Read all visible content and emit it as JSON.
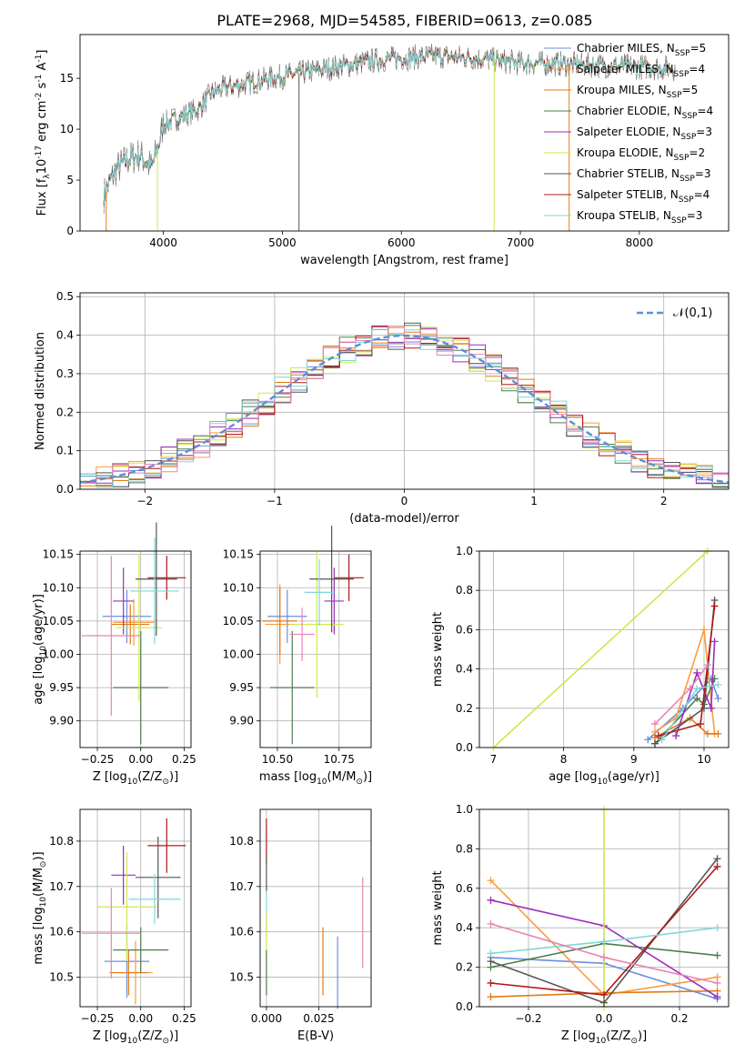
{
  "title": "PLATE=2968, MJD=54585, FIBERID=0613, z=0.085",
  "colors": {
    "c1": "#6a8fe0",
    "c2": "#ff9a3c",
    "c3": "#e27b16",
    "c4": "#4e7e4e",
    "c5": "#9b2dbb",
    "c6": "#cfe84a",
    "c7": "#555555",
    "c8": "#b01818",
    "c9": "#7fd8d8",
    "c10": "#e884b4"
  },
  "chart_data": [
    {
      "id": "spectrum",
      "type": "line",
      "xlabel": "wavelength [Angstrom, rest frame]",
      "ylabel": "Flux [f$_\\lambda$10$^{-17}$ erg cm$^{-2}$ s$^{-1}$ A$^{-1}$]",
      "xticks": [
        "4000",
        "5000",
        "6000",
        "7000",
        "8000"
      ],
      "yticks": [
        "0",
        "5",
        "10",
        "15"
      ],
      "xlim": [
        3300,
        8750
      ],
      "ylim": [
        0,
        19.3
      ],
      "legend_position": "upper-right",
      "series": [
        {
          "name": "Chabrier MILES, N$_{SSP}$=5",
          "color": "#6a8fe0"
        },
        {
          "name": "Salpeter MILES, N$_{SSP}$=4",
          "color": "#ff9a3c"
        },
        {
          "name": "Kroupa MILES, N$_{SSP}$=5",
          "color": "#e27b16"
        },
        {
          "name": "Chabrier ELODIE, N$_{SSP}$=4",
          "color": "#4e7e4e"
        },
        {
          "name": "Salpeter ELODIE, N$_{SSP}$=3",
          "color": "#9b2dbb"
        },
        {
          "name": "Kroupa ELODIE, N$_{SSP}$=2",
          "color": "#cfe84a"
        },
        {
          "name": "Chabrier STELIB, N$_{SSP}$=3",
          "color": "#555555"
        },
        {
          "name": "Salpeter STELIB, N$_{SSP}$=4",
          "color": "#b01818"
        },
        {
          "name": "Kroupa STELIB, N$_{SSP}$=3",
          "color": "#7fd8d8"
        }
      ],
      "spectrum_shape": [
        [
          3500,
          3.5
        ],
        [
          3600,
          6.0
        ],
        [
          3700,
          7.0
        ],
        [
          3800,
          7.5
        ],
        [
          3900,
          6.2
        ],
        [
          3950,
          8.0
        ],
        [
          4000,
          10.5
        ],
        [
          4100,
          11.0
        ],
        [
          4200,
          11.5
        ],
        [
          4300,
          12.0
        ],
        [
          4400,
          13.5
        ],
        [
          4500,
          14.0
        ],
        [
          4700,
          14.5
        ],
        [
          4900,
          15.0
        ],
        [
          5100,
          15.4
        ],
        [
          5300,
          15.8
        ],
        [
          5500,
          16.2
        ],
        [
          5800,
          16.8
        ],
        [
          6000,
          17.0
        ],
        [
          6300,
          17.2
        ],
        [
          6600,
          17.0
        ],
        [
          7000,
          16.5
        ],
        [
          7400,
          16.4
        ],
        [
          7800,
          16.2
        ],
        [
          8300,
          16.0
        ]
      ]
    },
    {
      "id": "residuals",
      "type": "histogram",
      "xlabel": "(data-model)/error",
      "ylabel": "Normed distribution",
      "xticks": [
        "−2",
        "−1",
        "0",
        "1",
        "2"
      ],
      "yticks": [
        "0.0",
        "0.1",
        "0.2",
        "0.3",
        "0.4",
        "0.5"
      ],
      "xlim": [
        -2.5,
        2.5
      ],
      "ylim": [
        0,
        0.51
      ],
      "legend_label": "$\\mathcal{N}(0,1)$",
      "legend_position": "upper-right",
      "grid": true
    },
    {
      "id": "age_vs_Z",
      "type": "scatter",
      "xlabel": "Z [log$_{10}$(Z/Z$_\\odot$)]",
      "ylabel": "age  [log$_{10}$(age/yr)]",
      "xticks": [
        "−0.25",
        "0.00",
        "0.25"
      ],
      "yticks": [
        "9.90",
        "9.95",
        "10.00",
        "10.05",
        "10.10",
        "10.15"
      ],
      "xlim": [
        -0.35,
        0.29
      ],
      "ylim": [
        9.86,
        10.155
      ],
      "points": [
        {
          "x": -0.08,
          "y": 10.057,
          "xerr": 0.14,
          "yerr": 0.04,
          "color": "#6a8fe0"
        },
        {
          "x": -0.04,
          "y": 10.048,
          "xerr": 0.12,
          "yerr": 0.035,
          "color": "#ff9a3c"
        },
        {
          "x": -0.06,
          "y": 10.045,
          "xerr": 0.11,
          "yerr": 0.03,
          "color": "#e27b16"
        },
        {
          "x": 0.0,
          "y": 9.95,
          "xerr": 0.16,
          "yerr": 0.085,
          "color": "#4e7e4e"
        },
        {
          "x": -0.1,
          "y": 10.08,
          "xerr": 0.06,
          "yerr": 0.05,
          "color": "#9b2dbb"
        },
        {
          "x": -0.01,
          "y": 10.04,
          "xerr": 0.13,
          "yerr": 0.11,
          "color": "#cfe84a"
        },
        {
          "x": 0.09,
          "y": 10.113,
          "xerr": 0.12,
          "yerr": 0.085,
          "color": "#555555"
        },
        {
          "x": 0.15,
          "y": 10.115,
          "xerr": 0.11,
          "yerr": 0.033,
          "color": "#b01818"
        },
        {
          "x": 0.08,
          "y": 10.095,
          "xerr": 0.14,
          "yerr": 0.08,
          "color": "#7fd8d8"
        },
        {
          "x": -0.17,
          "y": 10.028,
          "xerr": 0.17,
          "yerr": 0.12,
          "color": "#e884b4"
        }
      ]
    },
    {
      "id": "age_vs_mass",
      "type": "scatter",
      "xlabel": "mass [log$_{10}$(M/M$_\\odot$)]",
      "xticks": [
        "10.50",
        "10.75"
      ],
      "yticks": [
        "9.90",
        "9.95",
        "10.00",
        "10.05",
        "10.10",
        "10.15"
      ],
      "xlim": [
        10.43,
        10.88
      ],
      "ylim": [
        9.86,
        10.155
      ],
      "points": [
        {
          "x": 10.54,
          "y": 10.057,
          "xerr": 0.08,
          "yerr": 0.04,
          "color": "#6a8fe0"
        },
        {
          "x": 10.51,
          "y": 10.045,
          "xerr": 0.06,
          "yerr": 0.06,
          "color": "#ff9a3c"
        },
        {
          "x": 10.51,
          "y": 10.05,
          "xerr": 0.07,
          "yerr": 0.05,
          "color": "#e27b16"
        },
        {
          "x": 10.56,
          "y": 9.95,
          "xerr": 0.09,
          "yerr": 0.085,
          "color": "#4e7e4e"
        },
        {
          "x": 10.73,
          "y": 10.08,
          "xerr": 0.04,
          "yerr": 0.05,
          "color": "#9b2dbb"
        },
        {
          "x": 10.66,
          "y": 10.045,
          "xerr": 0.11,
          "yerr": 0.11,
          "color": "#cfe84a"
        },
        {
          "x": 10.72,
          "y": 10.113,
          "xerr": 0.09,
          "yerr": 0.08,
          "color": "#555555"
        },
        {
          "x": 10.79,
          "y": 10.115,
          "xerr": 0.06,
          "yerr": 0.035,
          "color": "#b01818"
        },
        {
          "x": 10.67,
          "y": 10.093,
          "xerr": 0.06,
          "yerr": 0.05,
          "color": "#7fd8d8"
        },
        {
          "x": 10.6,
          "y": 10.03,
          "xerr": 0.05,
          "yerr": 0.04,
          "color": "#e884b4"
        }
      ]
    },
    {
      "id": "massweight_vs_age",
      "type": "line",
      "xlabel": "age  [log$_{10}$(age/yr)]",
      "ylabel": "mass weight",
      "xticks": [
        "7",
        "8",
        "9",
        "10"
      ],
      "yticks": [
        "0.0",
        "0.2",
        "0.4",
        "0.6",
        "0.8",
        "1.0"
      ],
      "xlim": [
        6.8,
        10.35
      ],
      "ylim": [
        0,
        1
      ],
      "grid": true,
      "series": [
        {
          "color": "#6a8fe0",
          "x": [
            9.2,
            9.7,
            10.1,
            10.2
          ],
          "y": [
            0.04,
            0.2,
            0.35,
            0.25
          ]
        },
        {
          "color": "#ff9a3c",
          "x": [
            9.3,
            9.6,
            10.0,
            10.15
          ],
          "y": [
            0.08,
            0.15,
            0.6,
            0.07
          ]
        },
        {
          "color": "#e27b16",
          "x": [
            9.3,
            9.8,
            10.05,
            10.2
          ],
          "y": [
            0.05,
            0.15,
            0.07,
            0.07
          ]
        },
        {
          "color": "#4e7e4e",
          "x": [
            9.3,
            9.9,
            10.0,
            10.15
          ],
          "y": [
            0.02,
            0.25,
            0.22,
            0.35
          ]
        },
        {
          "color": "#9b2dbb",
          "x": [
            9.6,
            9.9,
            10.1,
            10.15
          ],
          "y": [
            0.06,
            0.38,
            0.2,
            0.54
          ]
        },
        {
          "color": "#cfe84a",
          "x": [
            7.0,
            10.05
          ],
          "y": [
            0.0,
            1.0
          ]
        },
        {
          "color": "#555555",
          "x": [
            9.3,
            10.0,
            10.15
          ],
          "y": [
            0.02,
            0.2,
            0.75
          ]
        },
        {
          "color": "#b01818",
          "x": [
            9.35,
            9.95,
            10.15
          ],
          "y": [
            0.06,
            0.12,
            0.72
          ]
        },
        {
          "color": "#7fd8d8",
          "x": [
            9.4,
            9.9,
            10.2
          ],
          "y": [
            0.04,
            0.3,
            0.32
          ]
        },
        {
          "color": "#e884b4",
          "x": [
            9.3,
            9.8,
            10.05
          ],
          "y": [
            0.12,
            0.3,
            0.42
          ]
        }
      ]
    },
    {
      "id": "mass_vs_Z",
      "type": "scatter",
      "xlabel": "Z [log$_{10}$(Z/Z$_\\odot$)]",
      "ylabel": "mass [log$_{10}$(M/M$_\\odot$)]",
      "xticks": [
        "−0.25",
        "0.00",
        "0.25"
      ],
      "yticks": [
        "10.5",
        "10.6",
        "10.7",
        "10.8"
      ],
      "xlim": [
        -0.35,
        0.29
      ],
      "ylim": [
        10.435,
        10.87
      ],
      "points": [
        {
          "x": -0.08,
          "y": 10.535,
          "xerr": 0.13,
          "yerr": 0.08,
          "color": "#6a8fe0"
        },
        {
          "x": -0.03,
          "y": 10.51,
          "xerr": 0.1,
          "yerr": 0.07,
          "color": "#ff9a3c"
        },
        {
          "x": -0.07,
          "y": 10.51,
          "xerr": 0.11,
          "yerr": 0.05,
          "color": "#e27b16"
        },
        {
          "x": 0.0,
          "y": 10.56,
          "xerr": 0.16,
          "yerr": 0.05,
          "color": "#4e7e4e"
        },
        {
          "x": -0.1,
          "y": 10.725,
          "xerr": 0.07,
          "yerr": 0.065,
          "color": "#9b2dbb"
        },
        {
          "x": -0.08,
          "y": 10.655,
          "xerr": 0.17,
          "yerr": 0.12,
          "color": "#cfe84a"
        },
        {
          "x": 0.1,
          "y": 10.72,
          "xerr": 0.13,
          "yerr": 0.09,
          "color": "#555555"
        },
        {
          "x": 0.15,
          "y": 10.79,
          "xerr": 0.11,
          "yerr": 0.06,
          "color": "#b01818"
        },
        {
          "x": 0.08,
          "y": 10.672,
          "xerr": 0.15,
          "yerr": 0.055,
          "color": "#7fd8d8"
        },
        {
          "x": -0.17,
          "y": 10.597,
          "xerr": 0.17,
          "yerr": 0.1,
          "color": "#e884b4"
        }
      ]
    },
    {
      "id": "mass_vs_ebv",
      "type": "scatter",
      "xlabel": "E(B-V)",
      "xticks": [
        "0.000",
        "0.025"
      ],
      "yticks": [
        "10.5",
        "10.6",
        "10.7",
        "10.8"
      ],
      "xlim": [
        -0.003,
        0.05
      ],
      "ylim": [
        10.435,
        10.87
      ],
      "points": [
        {
          "x": 0.0,
          "y": 10.8,
          "yerr": 0.05,
          "color": "#b01818"
        },
        {
          "x": 0.0,
          "y": 10.73,
          "yerr": 0.04,
          "color": "#555555"
        },
        {
          "x": 0.0,
          "y": 10.64,
          "yerr": 0.05,
          "color": "#7fd8d8"
        },
        {
          "x": 0.0,
          "y": 10.59,
          "yerr": 0.05,
          "color": "#cfe84a"
        },
        {
          "x": 0.0,
          "y": 10.51,
          "yerr": 0.05,
          "color": "#4e7e4e"
        },
        {
          "x": 0.027,
          "y": 10.535,
          "yerr": 0.075,
          "color": "#e27b16"
        },
        {
          "x": 0.034,
          "y": 10.51,
          "yerr": 0.08,
          "color": "#6a8fe0"
        },
        {
          "x": 0.046,
          "y": 10.62,
          "yerr": 0.1,
          "color": "#e884b4"
        }
      ]
    },
    {
      "id": "massweight_vs_Z",
      "type": "line",
      "xlabel": "Z [log$_{10}$(Z/Z$_\\odot$)]",
      "ylabel": "mass weight",
      "xticks": [
        "−0.2",
        "0.0",
        "0.2"
      ],
      "yticks": [
        "0.0",
        "0.2",
        "0.4",
        "0.6",
        "0.8",
        "1.0"
      ],
      "xlim": [
        -0.33,
        0.33
      ],
      "ylim": [
        0,
        1
      ],
      "grid": true,
      "series": [
        {
          "color": "#6a8fe0",
          "x": [
            -0.3,
            0.0,
            0.3
          ],
          "y": [
            0.25,
            0.22,
            0.04
          ]
        },
        {
          "color": "#ff9a3c",
          "x": [
            -0.3,
            0.0,
            0.3
          ],
          "y": [
            0.64,
            0.06,
            0.15
          ]
        },
        {
          "color": "#e27b16",
          "x": [
            -0.3,
            0.0,
            0.3
          ],
          "y": [
            0.05,
            0.07,
            0.08
          ]
        },
        {
          "color": "#4e7e4e",
          "x": [
            -0.3,
            0.0,
            0.3
          ],
          "y": [
            0.2,
            0.32,
            0.26
          ]
        },
        {
          "color": "#9b2dbb",
          "x": [
            -0.3,
            0.0,
            0.3
          ],
          "y": [
            0.54,
            0.41,
            0.05
          ]
        },
        {
          "color": "#cfe84a",
          "x": [
            0.0,
            0.0
          ],
          "y": [
            0.0,
            1.0
          ]
        },
        {
          "color": "#555555",
          "x": [
            -0.3,
            0.0,
            0.3
          ],
          "y": [
            0.23,
            0.02,
            0.75
          ]
        },
        {
          "color": "#b01818",
          "x": [
            -0.3,
            0.0,
            0.3
          ],
          "y": [
            0.12,
            0.06,
            0.71
          ]
        },
        {
          "color": "#7fd8d8",
          "x": [
            -0.3,
            0.0,
            0.3
          ],
          "y": [
            0.27,
            0.33,
            0.4
          ]
        },
        {
          "color": "#e884b4",
          "x": [
            -0.3,
            0.0,
            0.3
          ],
          "y": [
            0.42,
            0.25,
            0.12
          ]
        }
      ]
    }
  ]
}
